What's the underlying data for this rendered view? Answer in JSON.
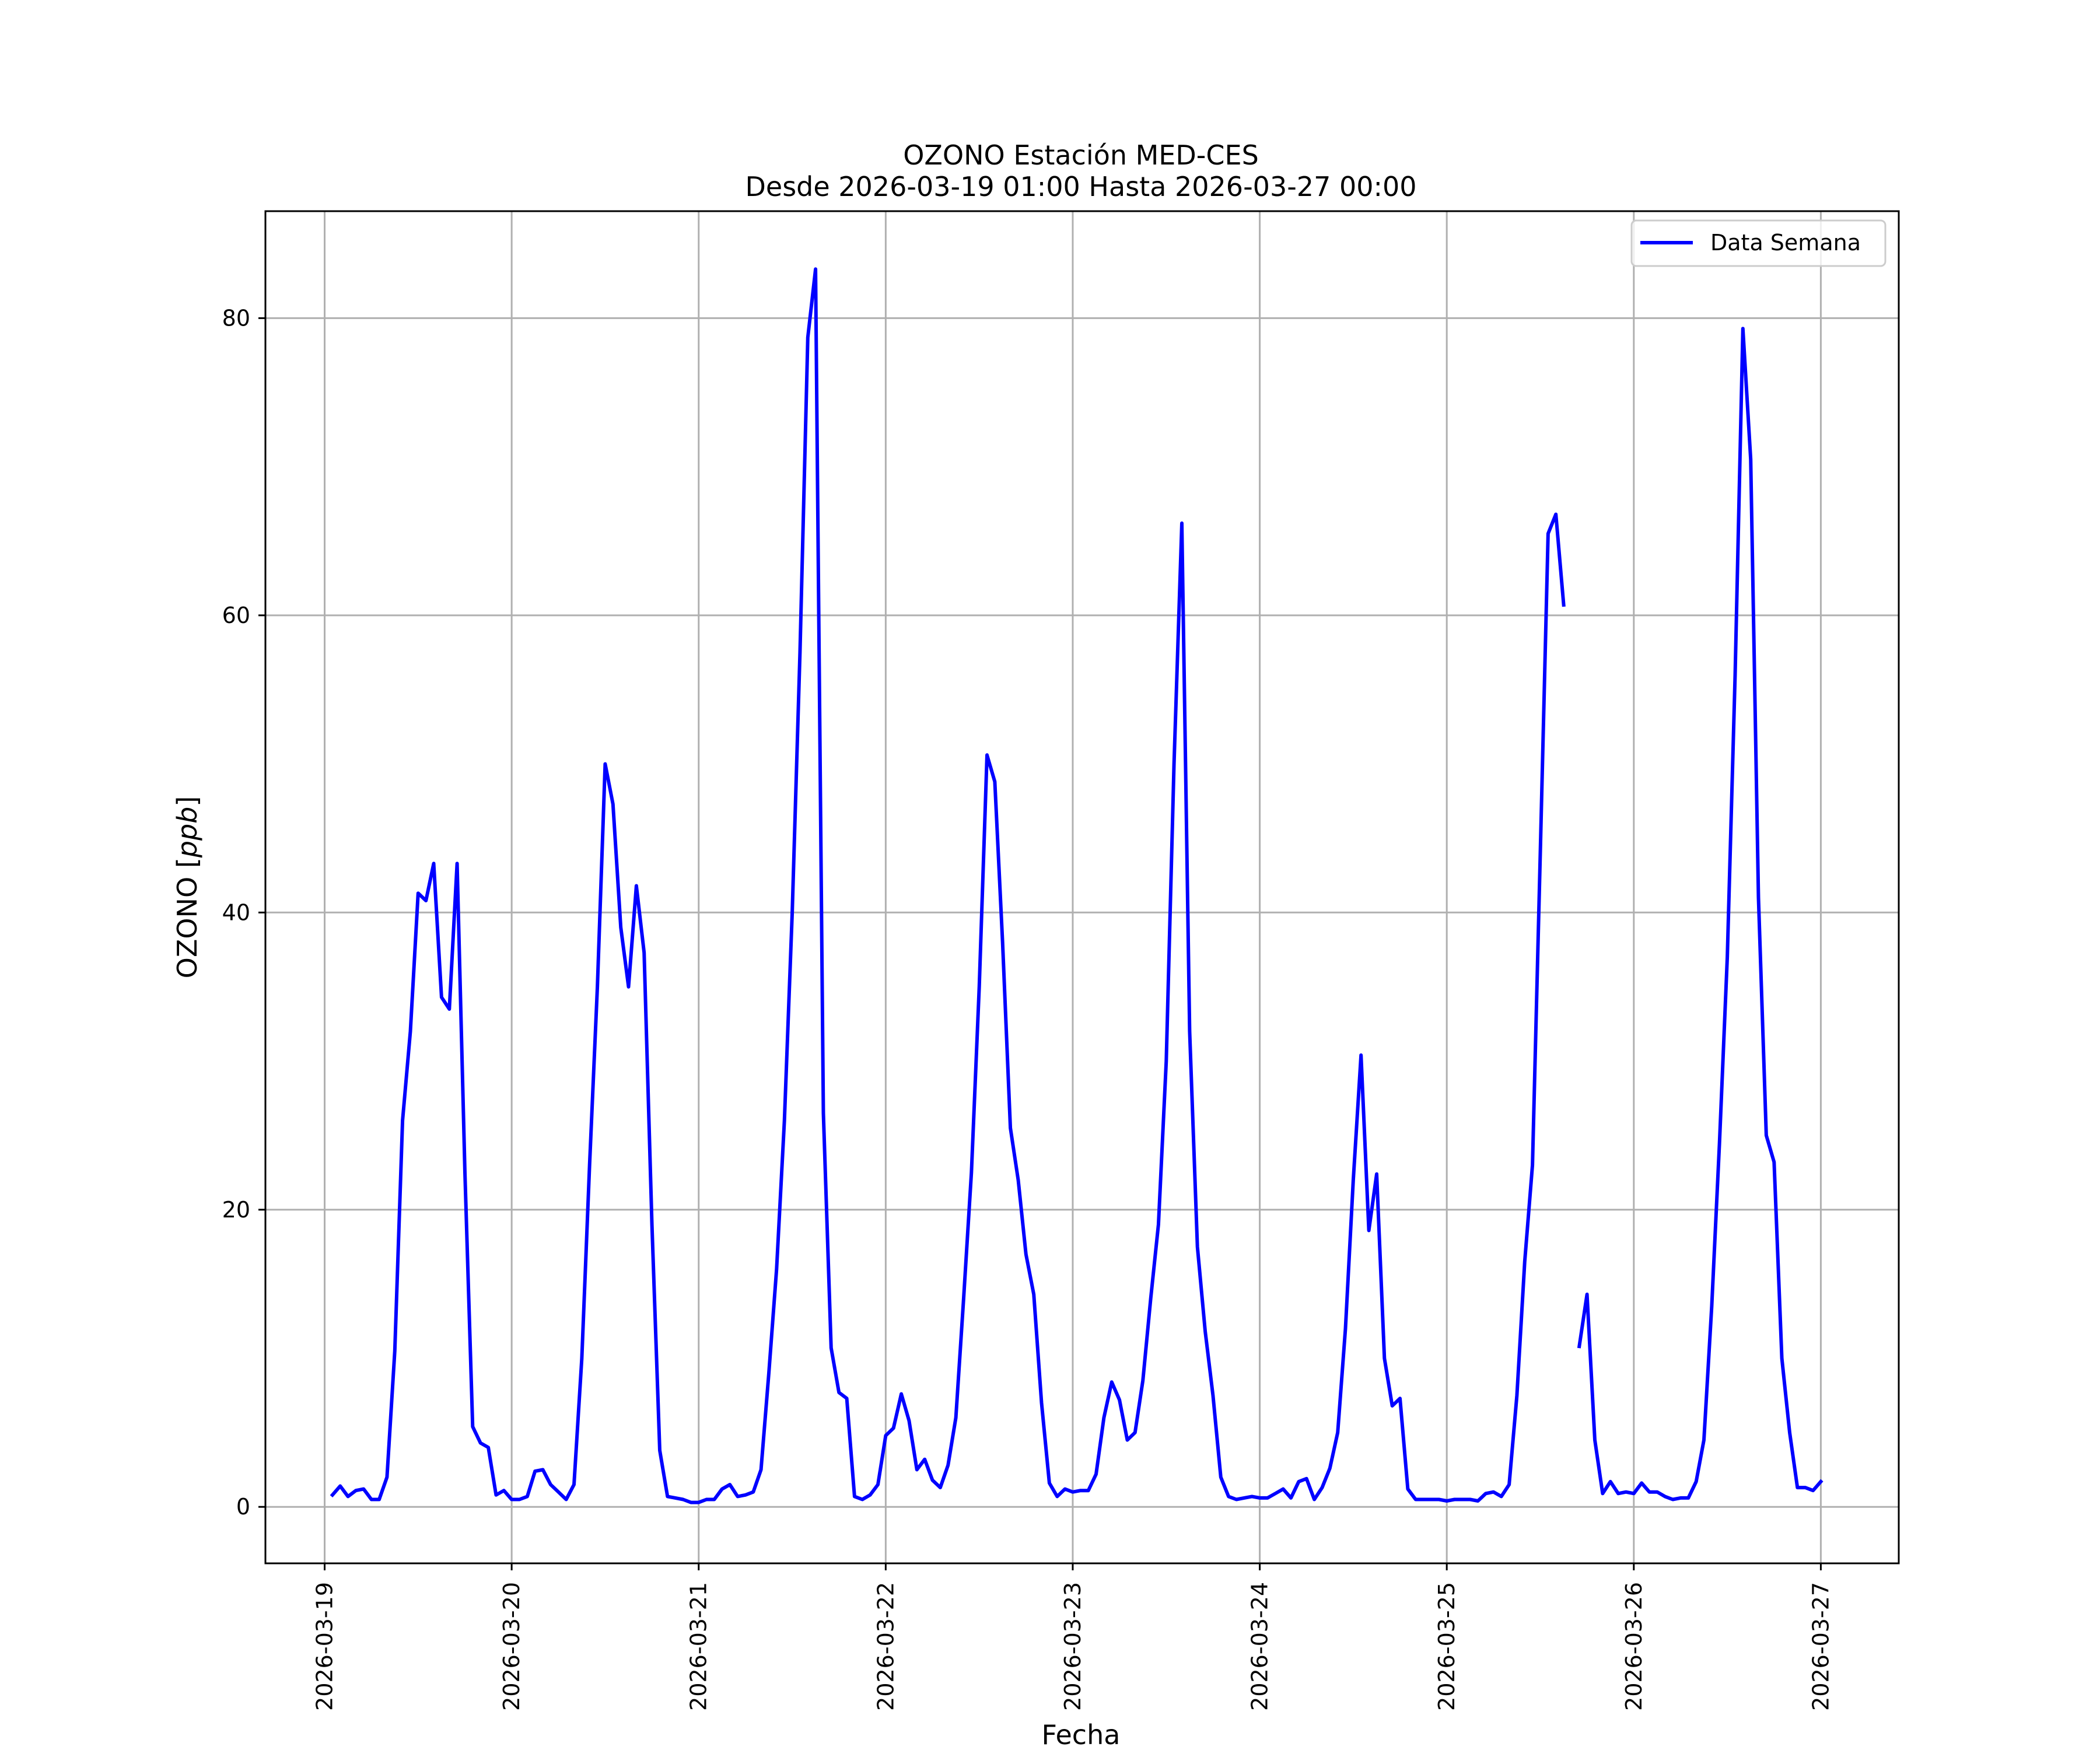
{
  "chart_data": {
    "type": "line",
    "title_line1": "OZONO Estación MED-CES",
    "title_line2": "Desde 2026-03-19 01:00 Hasta 2026-03-27 00:00",
    "xlabel": "Fecha",
    "ylabel_prefix": "OZONO [",
    "ylabel_unit": "ppb",
    "ylabel_suffix": "]",
    "xlim": [
      "2026-03-18 16:24",
      "2026-03-27 10:00"
    ],
    "ylim": [
      -3.8,
      87.2
    ],
    "x_ticks": [
      "2026-03-19",
      "2026-03-20",
      "2026-03-21",
      "2026-03-22",
      "2026-03-23",
      "2026-03-24",
      "2026-03-25",
      "2026-03-26",
      "2026-03-27"
    ],
    "y_ticks": [
      0,
      20,
      40,
      60,
      80
    ],
    "grid": true,
    "legend_position": "upper right",
    "line_color": "#0000ff",
    "series": [
      {
        "name": "Data Semana",
        "segments": [
          [
            [
              "2026-03-19 01:00",
              0.8
            ],
            [
              "2026-03-19 02:00",
              1.4
            ],
            [
              "2026-03-19 03:00",
              0.7
            ],
            [
              "2026-03-19 04:00",
              1.1
            ],
            [
              "2026-03-19 05:00",
              1.2
            ],
            [
              "2026-03-19 06:00",
              0.5
            ],
            [
              "2026-03-19 07:00",
              0.5
            ],
            [
              "2026-03-19 08:00",
              2.0
            ],
            [
              "2026-03-19 09:00",
              10.5
            ],
            [
              "2026-03-19 10:00",
              26.0
            ],
            [
              "2026-03-19 11:00",
              32.0
            ],
            [
              "2026-03-19 12:00",
              41.3
            ],
            [
              "2026-03-19 13:00",
              40.8
            ],
            [
              "2026-03-19 14:00",
              43.3
            ],
            [
              "2026-03-19 15:00",
              34.3
            ],
            [
              "2026-03-19 16:00",
              33.5
            ],
            [
              "2026-03-19 17:00",
              43.3
            ],
            [
              "2026-03-19 18:00",
              22.5
            ],
            [
              "2026-03-19 19:00",
              5.4
            ],
            [
              "2026-03-19 20:00",
              4.3
            ],
            [
              "2026-03-19 21:00",
              4.0
            ],
            [
              "2026-03-19 22:00",
              0.8
            ],
            [
              "2026-03-19 23:00",
              1.1
            ],
            [
              "2026-03-20 00:00",
              0.5
            ],
            [
              "2026-03-20 01:00",
              0.5
            ],
            [
              "2026-03-20 02:00",
              0.7
            ],
            [
              "2026-03-20 03:00",
              2.4
            ],
            [
              "2026-03-20 04:00",
              2.5
            ],
            [
              "2026-03-20 05:00",
              1.5
            ],
            [
              "2026-03-20 06:00",
              1.0
            ],
            [
              "2026-03-20 07:00",
              0.5
            ],
            [
              "2026-03-20 08:00",
              1.5
            ],
            [
              "2026-03-20 09:00",
              10.0
            ],
            [
              "2026-03-20 10:00",
              23.0
            ],
            [
              "2026-03-20 11:00",
              35.0
            ],
            [
              "2026-03-20 12:00",
              50.0
            ],
            [
              "2026-03-20 13:00",
              47.3
            ],
            [
              "2026-03-20 14:00",
              39.0
            ],
            [
              "2026-03-20 15:00",
              35.0
            ],
            [
              "2026-03-20 16:00",
              41.8
            ],
            [
              "2026-03-20 17:00",
              37.3
            ],
            [
              "2026-03-20 18:00",
              19.0
            ],
            [
              "2026-03-20 19:00",
              3.8
            ],
            [
              "2026-03-20 20:00",
              0.7
            ],
            [
              "2026-03-20 21:00",
              0.6
            ],
            [
              "2026-03-20 22:00",
              0.5
            ],
            [
              "2026-03-20 23:00",
              0.3
            ],
            [
              "2026-03-21 00:00",
              0.3
            ],
            [
              "2026-03-21 01:00",
              0.5
            ],
            [
              "2026-03-21 02:00",
              0.5
            ],
            [
              "2026-03-21 03:00",
              1.2
            ],
            [
              "2026-03-21 04:00",
              1.5
            ],
            [
              "2026-03-21 05:00",
              0.7
            ],
            [
              "2026-03-21 06:00",
              0.8
            ],
            [
              "2026-03-21 07:00",
              1.0
            ],
            [
              "2026-03-21 08:00",
              2.5
            ],
            [
              "2026-03-21 09:00",
              9.0
            ],
            [
              "2026-03-21 10:00",
              16.0
            ],
            [
              "2026-03-21 11:00",
              26.0
            ],
            [
              "2026-03-21 12:00",
              40.0
            ],
            [
              "2026-03-21 13:00",
              57.5
            ],
            [
              "2026-03-21 14:00",
              78.7
            ],
            [
              "2026-03-21 15:00",
              83.3
            ],
            [
              "2026-03-21 16:00",
              26.5
            ],
            [
              "2026-03-21 17:00",
              10.7
            ],
            [
              "2026-03-21 18:00",
              7.7
            ],
            [
              "2026-03-21 19:00",
              7.3
            ],
            [
              "2026-03-21 20:00",
              0.7
            ],
            [
              "2026-03-21 21:00",
              0.5
            ],
            [
              "2026-03-21 22:00",
              0.8
            ],
            [
              "2026-03-21 23:00",
              1.5
            ],
            [
              "2026-03-22 00:00",
              4.8
            ],
            [
              "2026-03-22 01:00",
              5.3
            ],
            [
              "2026-03-22 02:00",
              7.6
            ],
            [
              "2026-03-22 03:00",
              5.8
            ],
            [
              "2026-03-22 04:00",
              2.5
            ],
            [
              "2026-03-22 05:00",
              3.2
            ],
            [
              "2026-03-22 06:00",
              1.8
            ],
            [
              "2026-03-22 07:00",
              1.3
            ],
            [
              "2026-03-22 08:00",
              2.8
            ],
            [
              "2026-03-22 09:00",
              6.0
            ],
            [
              "2026-03-22 10:00",
              14.0
            ],
            [
              "2026-03-22 11:00",
              22.5
            ],
            [
              "2026-03-22 12:00",
              35.0
            ],
            [
              "2026-03-22 13:00",
              50.6
            ],
            [
              "2026-03-22 14:00",
              48.8
            ],
            [
              "2026-03-22 15:00",
              38.0
            ],
            [
              "2026-03-22 16:00",
              25.5
            ],
            [
              "2026-03-22 17:00",
              22.0
            ],
            [
              "2026-03-22 18:00",
              17.0
            ],
            [
              "2026-03-22 19:00",
              14.3
            ],
            [
              "2026-03-22 20:00",
              7.0
            ],
            [
              "2026-03-22 21:00",
              1.6
            ],
            [
              "2026-03-22 22:00",
              0.7
            ],
            [
              "2026-03-22 23:00",
              1.2
            ],
            [
              "2026-03-23 00:00",
              1.0
            ],
            [
              "2026-03-23 01:00",
              1.1
            ],
            [
              "2026-03-23 02:00",
              1.1
            ],
            [
              "2026-03-23 03:00",
              2.2
            ],
            [
              "2026-03-23 04:00",
              6.0
            ],
            [
              "2026-03-23 05:00",
              8.4
            ],
            [
              "2026-03-23 06:00",
              7.2
            ],
            [
              "2026-03-23 07:00",
              4.5
            ],
            [
              "2026-03-23 08:00",
              5.0
            ],
            [
              "2026-03-23 09:00",
              8.5
            ],
            [
              "2026-03-23 10:00",
              14.0
            ],
            [
              "2026-03-23 11:00",
              19.0
            ],
            [
              "2026-03-23 12:00",
              30.0
            ],
            [
              "2026-03-23 13:00",
              50.0
            ],
            [
              "2026-03-23 14:00",
              66.2
            ],
            [
              "2026-03-23 15:00",
              32.0
            ],
            [
              "2026-03-23 16:00",
              17.5
            ],
            [
              "2026-03-23 17:00",
              11.8
            ],
            [
              "2026-03-23 18:00",
              7.5
            ],
            [
              "2026-03-23 19:00",
              2.0
            ],
            [
              "2026-03-23 20:00",
              0.7
            ],
            [
              "2026-03-23 21:00",
              0.5
            ],
            [
              "2026-03-23 22:00",
              0.6
            ],
            [
              "2026-03-23 23:00",
              0.7
            ],
            [
              "2026-03-24 00:00",
              0.6
            ],
            [
              "2026-03-24 01:00",
              0.6
            ],
            [
              "2026-03-24 02:00",
              0.9
            ],
            [
              "2026-03-24 03:00",
              1.2
            ],
            [
              "2026-03-24 04:00",
              0.6
            ],
            [
              "2026-03-24 05:00",
              1.7
            ],
            [
              "2026-03-24 06:00",
              1.9
            ],
            [
              "2026-03-24 07:00",
              0.5
            ],
            [
              "2026-03-24 08:00",
              1.3
            ],
            [
              "2026-03-24 09:00",
              2.6
            ],
            [
              "2026-03-24 10:00",
              5.0
            ],
            [
              "2026-03-24 11:00",
              12.0
            ],
            [
              "2026-03-24 12:00",
              22.0
            ],
            [
              "2026-03-24 13:00",
              30.4
            ],
            [
              "2026-03-24 14:00",
              18.6
            ],
            [
              "2026-03-24 15:00",
              22.4
            ],
            [
              "2026-03-24 16:00",
              10.0
            ],
            [
              "2026-03-24 17:00",
              6.8
            ],
            [
              "2026-03-24 18:00",
              7.3
            ],
            [
              "2026-03-24 19:00",
              1.2
            ],
            [
              "2026-03-24 20:00",
              0.5
            ],
            [
              "2026-03-24 21:00",
              0.5
            ],
            [
              "2026-03-24 22:00",
              0.5
            ],
            [
              "2026-03-24 23:00",
              0.5
            ],
            [
              "2026-03-25 00:00",
              0.4
            ],
            [
              "2026-03-25 01:00",
              0.5
            ],
            [
              "2026-03-25 02:00",
              0.5
            ],
            [
              "2026-03-25 03:00",
              0.5
            ],
            [
              "2026-03-25 04:00",
              0.4
            ],
            [
              "2026-03-25 05:00",
              0.9
            ],
            [
              "2026-03-25 06:00",
              1.0
            ],
            [
              "2026-03-25 07:00",
              0.7
            ],
            [
              "2026-03-25 08:00",
              1.5
            ],
            [
              "2026-03-25 09:00",
              7.5
            ],
            [
              "2026-03-25 10:00",
              16.5
            ],
            [
              "2026-03-25 11:00",
              23.0
            ],
            [
              "2026-03-25 12:00",
              44.0
            ],
            [
              "2026-03-25 13:00",
              65.5
            ],
            [
              "2026-03-25 14:00",
              66.8
            ],
            [
              "2026-03-25 15:00",
              60.7
            ]
          ],
          [
            [
              "2026-03-25 17:00",
              10.8
            ],
            [
              "2026-03-25 18:00",
              14.3
            ],
            [
              "2026-03-25 19:00",
              4.5
            ],
            [
              "2026-03-25 20:00",
              0.9
            ],
            [
              "2026-03-25 21:00",
              1.7
            ],
            [
              "2026-03-25 22:00",
              0.9
            ],
            [
              "2026-03-25 23:00",
              1.0
            ],
            [
              "2026-03-26 00:00",
              0.9
            ],
            [
              "2026-03-26 01:00",
              1.6
            ],
            [
              "2026-03-26 02:00",
              1.0
            ],
            [
              "2026-03-26 03:00",
              1.0
            ],
            [
              "2026-03-26 04:00",
              0.7
            ],
            [
              "2026-03-26 05:00",
              0.5
            ],
            [
              "2026-03-26 06:00",
              0.6
            ],
            [
              "2026-03-26 07:00",
              0.6
            ],
            [
              "2026-03-26 08:00",
              1.7
            ],
            [
              "2026-03-26 09:00",
              4.5
            ],
            [
              "2026-03-26 10:00",
              13.5
            ],
            [
              "2026-03-26 11:00",
              24.5
            ],
            [
              "2026-03-26 12:00",
              37.0
            ],
            [
              "2026-03-26 13:00",
              56.0
            ],
            [
              "2026-03-26 14:00",
              79.3
            ],
            [
              "2026-03-26 15:00",
              70.5
            ],
            [
              "2026-03-26 16:00",
              41.0
            ],
            [
              "2026-03-26 17:00",
              25.0
            ],
            [
              "2026-03-26 18:00",
              23.2
            ],
            [
              "2026-03-26 19:00",
              10.0
            ],
            [
              "2026-03-26 20:00",
              5.0
            ],
            [
              "2026-03-26 21:00",
              1.3
            ],
            [
              "2026-03-26 22:00",
              1.3
            ],
            [
              "2026-03-26 23:00",
              1.1
            ],
            [
              "2026-03-27 00:00",
              1.7
            ]
          ]
        ]
      }
    ]
  }
}
